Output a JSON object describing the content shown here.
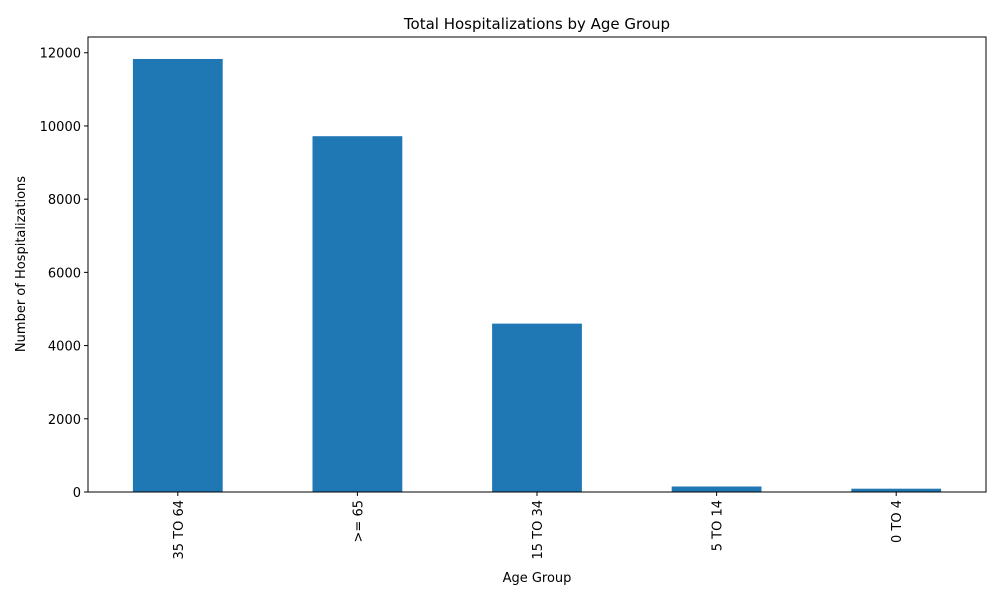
{
  "chart_data": {
    "type": "bar",
    "title": "Total Hospitalizations by Age Group",
    "xlabel": "Age Group",
    "ylabel": "Number of Hospitalizations",
    "categories": [
      "35 TO 64",
      ">= 65",
      "15 TO 34",
      "5 TO 14",
      "0 TO 4"
    ],
    "values": [
      11830,
      9720,
      4600,
      150,
      90
    ],
    "ylim": [
      0,
      12430
    ],
    "yticks": [
      0,
      2000,
      4000,
      6000,
      8000,
      10000,
      12000
    ],
    "grid": false,
    "legend": "none",
    "bar_color": "#1f77b4"
  }
}
